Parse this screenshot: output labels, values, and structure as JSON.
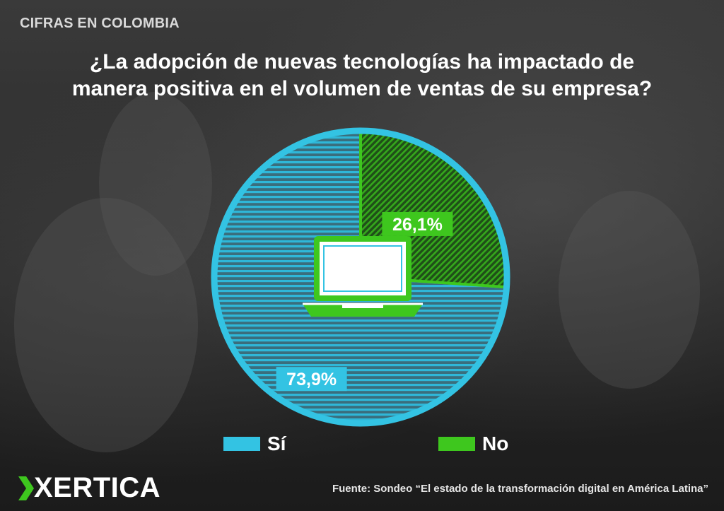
{
  "header": {
    "kicker": "CIFRAS EN COLOMBIA",
    "title_line1": "¿La adopción de nuevas tecnologías ha impactado de",
    "title_line2": "manera positiva en el volumen de ventas de su empresa?"
  },
  "chart_data": {
    "type": "pie",
    "categories": [
      "Sí",
      "No"
    ],
    "values": [
      73.9,
      26.1
    ],
    "labels": [
      "73,9%",
      "26,1%"
    ],
    "colors": [
      "#33c3e3",
      "#3ec71e"
    ],
    "legend_position": "bottom",
    "center_icon": "laptop-icon"
  },
  "legend": [
    {
      "label": "Sí",
      "color": "#33c3e3"
    },
    {
      "label": "No",
      "color": "#3ec71e"
    }
  ],
  "brand": {
    "logo_text": "XERTICA",
    "logo_color": "#3ec71e"
  },
  "footer": {
    "source": "Fuente: Sondeo “El estado de la transformación digital en América Latina”"
  }
}
